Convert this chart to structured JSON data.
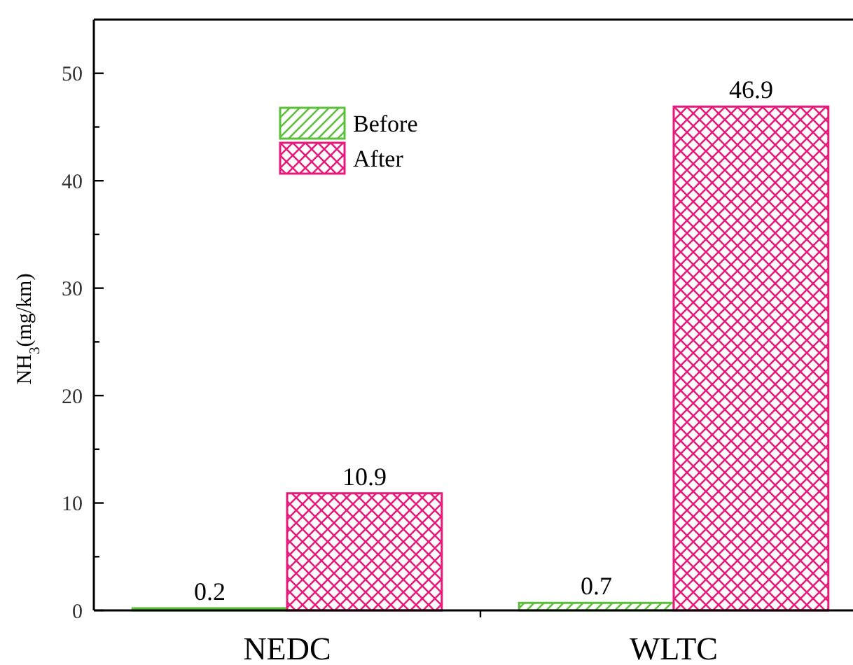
{
  "chart_data": {
    "type": "bar",
    "categories": [
      "NEDC",
      "WLTC"
    ],
    "ylabel": "NH$_{3}$(mg/km)",
    "ylim": [
      0,
      55
    ],
    "yticks": [
      0,
      {
        "value": 5,
        "label": null
      },
      10,
      {
        "value": 15,
        "label": null
      },
      20,
      {
        "value": 25,
        "label": null
      },
      30,
      {
        "value": 35,
        "label": null
      },
      40,
      {
        "value": 45,
        "label": null
      },
      50
    ],
    "series": [
      {
        "name": "Before",
        "color": "#5cbf3a",
        "values": [
          0.2,
          0.7
        ]
      },
      {
        "name": "After",
        "color": "#e8197a",
        "values": [
          10.9,
          46.9
        ]
      }
    ],
    "data_labels": true,
    "legend": "top left"
  }
}
